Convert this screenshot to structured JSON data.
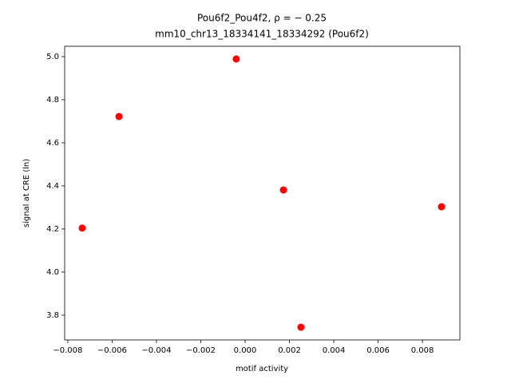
{
  "chart_data": {
    "type": "scatter",
    "title": "Pou6f2_Pou4f2, ρ = − 0.25",
    "subtitle": "mm10_chr13_18334141_18334292 (Pou6f2)",
    "x_label": "motif activity",
    "y_label": "signal at CRE (ln)",
    "color": "#ff0000",
    "x": [
      -0.0004,
      -0.00569,
      -0.00735,
      0.00173,
      0.00886,
      0.00252
    ],
    "values": [
      4.989,
      4.722,
      4.204,
      4.381,
      4.303,
      3.744
    ],
    "xlim": [
      -0.00814,
      0.00969
    ],
    "ylim": [
      3.685,
      5.048
    ],
    "xticks": [
      {
        "value": -0.008,
        "label": "−0.008"
      },
      {
        "value": -0.006,
        "label": "−0.006"
      },
      {
        "value": -0.004,
        "label": "−0.004"
      },
      {
        "value": -0.002,
        "label": "−0.002"
      },
      {
        "value": 0,
        "label": "0.000"
      },
      0.002,
      0.004,
      0.006,
      0.008
    ],
    "yticks": [
      {
        "value": 3.8,
        "label": "3.8"
      },
      {
        "value": 4.0,
        "label": "4.0"
      },
      4.2,
      4.4,
      4.6,
      4.8,
      {
        "value": 5.0,
        "label": "5.0"
      }
    ]
  }
}
